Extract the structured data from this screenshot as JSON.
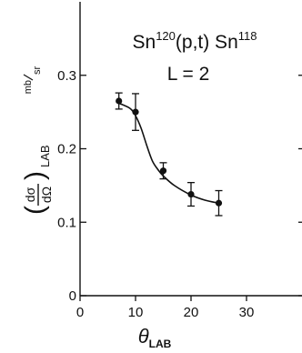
{
  "chart_data": {
    "type": "scatter",
    "title_line1": {
      "pre": "Sn",
      "a1": "120",
      "mid": "(p,t) Sn",
      "a2": "118"
    },
    "title_line2": "L = 2",
    "xlabel": {
      "main": "θ",
      "sub": "LAB"
    },
    "ylabel": {
      "num": "dσ",
      "den": "dΩ",
      "sub": "LAB",
      "unit_num": "mb",
      "unit_den": "sr"
    },
    "xlim": [
      0,
      40
    ],
    "ylim": [
      0,
      0.4
    ],
    "xticks": [
      {
        "value": 0,
        "label": "0"
      },
      {
        "value": 10,
        "label": "10"
      },
      {
        "value": 20,
        "label": "20"
      },
      {
        "value": 30,
        "label": "30"
      }
    ],
    "yticks": [
      {
        "value": 0,
        "label": "0"
      },
      {
        "value": 0.1,
        "label": "0.1"
      },
      {
        "value": 0.2,
        "label": "0.2"
      },
      {
        "value": 0.3,
        "label": "0.3"
      }
    ],
    "series": [
      {
        "x": [
          7,
          10,
          15,
          20,
          25
        ],
        "y": [
          0.265,
          0.25,
          0.17,
          0.138,
          0.126
        ],
        "yerr": [
          0.011,
          0.025,
          0.011,
          0.016,
          0.017
        ]
      }
    ],
    "curve": {
      "x": [
        7,
        9,
        10,
        11,
        12,
        13,
        14,
        15,
        17,
        20,
        22.5,
        25
      ],
      "y": [
        0.262,
        0.255,
        0.245,
        0.228,
        0.205,
        0.184,
        0.172,
        0.163,
        0.15,
        0.137,
        0.13,
        0.126
      ]
    },
    "color": "#111111"
  }
}
